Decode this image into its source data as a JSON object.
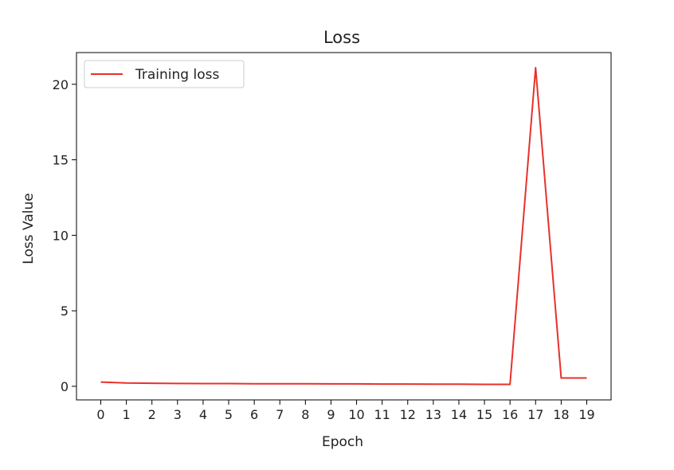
{
  "chart_data": {
    "type": "line",
    "title": "Loss",
    "xlabel": "Epoch",
    "ylabel": "Loss Value",
    "x": [
      0,
      1,
      2,
      3,
      4,
      5,
      6,
      7,
      8,
      9,
      10,
      11,
      12,
      13,
      14,
      15,
      16,
      17,
      18,
      19
    ],
    "xticks": [
      "0",
      "1",
      "2",
      "3",
      "4",
      "5",
      "6",
      "7",
      "8",
      "9",
      "10",
      "11",
      "12",
      "13",
      "14",
      "15",
      "16",
      "17",
      "18",
      "19"
    ],
    "yticks": [
      0,
      5,
      10,
      15,
      20
    ],
    "ylim": [
      -0.9,
      22.1
    ],
    "xlim": [
      -0.95,
      19.95
    ],
    "grid": false,
    "legend_position": "top-left",
    "series": [
      {
        "name": "Training loss",
        "color": "#e8312b",
        "values": [
          0.28,
          0.22,
          0.2,
          0.19,
          0.18,
          0.18,
          0.17,
          0.17,
          0.17,
          0.16,
          0.16,
          0.15,
          0.15,
          0.14,
          0.14,
          0.13,
          0.13,
          21.1,
          0.55,
          0.55
        ]
      }
    ]
  }
}
